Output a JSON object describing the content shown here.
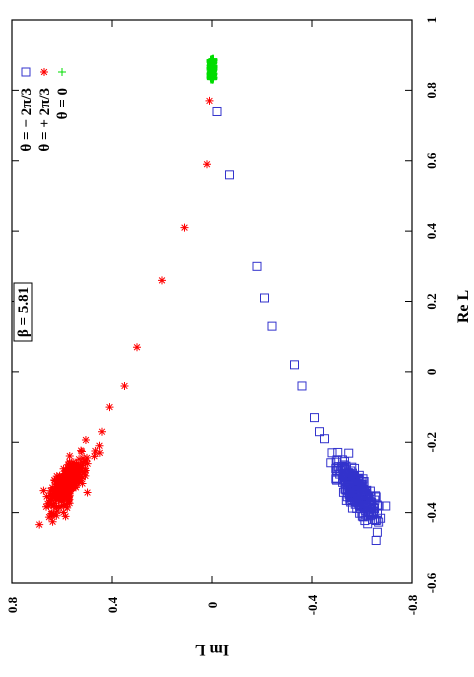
{
  "chart_data": {
    "type": "scatter",
    "title": "",
    "xlabel": "Re L",
    "ylabel": "Im L",
    "xlim": [
      -0.6,
      1.0
    ],
    "ylim": [
      -0.8,
      0.8
    ],
    "x_ticks": [
      "-0.6",
      "-0.4",
      "-0.2",
      "0",
      "0.2",
      "0.4",
      "0.6",
      "0.8",
      "1"
    ],
    "y_ticks": [
      "0.8",
      "0.4",
      "0",
      "-0.4",
      "-0.8"
    ],
    "x_tick_values": [
      -0.6,
      -0.4,
      -0.2,
      0,
      0.2,
      0.4,
      0.6,
      0.8,
      1.0
    ],
    "y_tick_values": [
      0.8,
      0.4,
      0,
      -0.4,
      -0.8
    ],
    "orientation": "rotated-90-ccw",
    "grid": false,
    "legend_position": "top-right",
    "annotation": "β = 5.81",
    "series": [
      {
        "name": "θ = − 2π/3",
        "marker": "square",
        "color": "#3333cc",
        "points": [
          [
            0.74,
            -0.02
          ],
          [
            0.56,
            -0.07
          ],
          [
            0.3,
            -0.18
          ],
          [
            0.21,
            -0.21
          ],
          [
            0.13,
            -0.24
          ],
          [
            0.02,
            -0.33
          ],
          [
            -0.04,
            -0.36
          ],
          [
            -0.13,
            -0.41
          ],
          [
            -0.17,
            -0.43
          ],
          [
            -0.19,
            -0.45
          ],
          [
            -0.23,
            -0.48
          ],
          [
            -0.25,
            -0.5
          ]
        ],
        "cluster": {
          "center": [
            -0.34,
            -0.58
          ],
          "spread": [
            0.04,
            0.055
          ],
          "count": 300
        }
      },
      {
        "name": "θ = + 2π/3",
        "marker": "star",
        "color": "#ff0000",
        "points": [
          [
            0.77,
            0.01
          ],
          [
            0.59,
            0.02
          ],
          [
            0.41,
            0.11
          ],
          [
            0.26,
            0.2
          ],
          [
            0.07,
            0.3
          ],
          [
            -0.04,
            0.35
          ],
          [
            -0.1,
            0.41
          ],
          [
            -0.17,
            0.44
          ],
          [
            -0.21,
            0.45
          ],
          [
            -0.24,
            0.47
          ]
        ],
        "cluster": {
          "center": [
            -0.32,
            0.58
          ],
          "spread": [
            0.04,
            0.055
          ],
          "count": 300
        }
      },
      {
        "name": "θ = 0",
        "marker": "plus",
        "color": "#00dd00",
        "points": [],
        "cluster": {
          "center": [
            0.86,
            0.0
          ],
          "spread": [
            0.03,
            0.006
          ],
          "count": 250
        }
      }
    ]
  }
}
